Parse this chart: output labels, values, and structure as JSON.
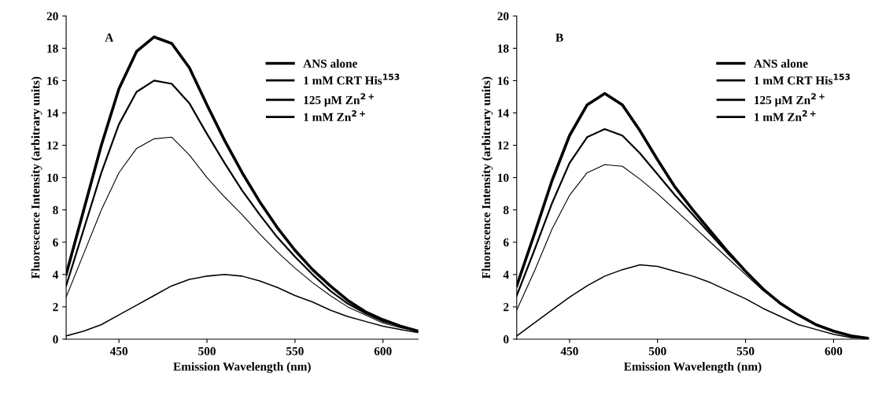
{
  "chart_data": [
    {
      "type": "line",
      "xlabel": "Emission Wavelength (nm)",
      "ylabel": "Fluorescence Intensity (arbitrary units)",
      "annotations": [
        "A"
      ],
      "legend": "top right",
      "grid": false,
      "x": [
        420,
        430,
        440,
        450,
        460,
        470,
        480,
        490,
        500,
        510,
        520,
        530,
        540,
        550,
        560,
        570,
        580,
        590,
        600,
        610,
        620
      ],
      "xlim": [
        420,
        620
      ],
      "xticks": [
        450,
        500,
        550,
        600
      ],
      "ylim": [
        0,
        20
      ],
      "yticks": [
        0,
        2,
        4,
        6,
        8,
        10,
        12,
        14,
        16,
        18,
        20
      ],
      "series": [
        {
          "name": "ANS alone",
          "color": "#000000",
          "values": [
            4.0,
            8.0,
            12.0,
            15.5,
            17.8,
            18.7,
            18.3,
            16.8,
            14.5,
            12.3,
            10.3,
            8.5,
            6.9,
            5.5,
            4.3,
            3.3,
            2.4,
            1.7,
            1.2,
            0.8,
            0.5
          ]
        },
        {
          "name": "1 mM CRT His$^{153}$",
          "color": "#000000",
          "values": [
            3.3,
            6.8,
            10.3,
            13.3,
            15.3,
            16.0,
            15.8,
            14.6,
            12.7,
            10.9,
            9.2,
            7.7,
            6.3,
            5.1,
            4.0,
            3.0,
            2.2,
            1.6,
            1.1,
            0.8,
            0.5
          ]
        },
        {
          "name": "125 μM Zn$^{2+}$",
          "color": "#000000",
          "values": [
            2.6,
            5.3,
            8.0,
            10.3,
            11.8,
            12.4,
            12.5,
            11.4,
            10.0,
            8.8,
            7.7,
            6.5,
            5.4,
            4.4,
            3.5,
            2.7,
            2.0,
            1.5,
            1.0,
            0.7,
            0.5
          ]
        },
        {
          "name": "1 mM Zn$^{2+}$",
          "color": "#000000",
          "values": [
            0.2,
            0.5,
            0.9,
            1.5,
            2.1,
            2.7,
            3.3,
            3.7,
            3.9,
            4.0,
            3.9,
            3.6,
            3.2,
            2.7,
            2.3,
            1.8,
            1.4,
            1.1,
            0.8,
            0.6,
            0.4
          ]
        }
      ]
    },
    {
      "type": "line",
      "xlabel": "Emission Wavelength (nm)",
      "ylabel": "Fluorescence Intensity (arbitrary units)",
      "annotations": [
        "B"
      ],
      "legend": "top right",
      "grid": false,
      "x": [
        420,
        430,
        440,
        450,
        460,
        470,
        480,
        490,
        500,
        510,
        520,
        530,
        540,
        550,
        560,
        570,
        580,
        590,
        600,
        610,
        620
      ],
      "xlim": [
        420,
        620
      ],
      "xticks": [
        450,
        500,
        550,
        600
      ],
      "ylim": [
        0,
        20
      ],
      "yticks": [
        0,
        2,
        4,
        6,
        8,
        10,
        12,
        14,
        16,
        18,
        20
      ],
      "series": [
        {
          "name": "ANS alone",
          "color": "#000000",
          "values": [
            3.3,
            6.5,
            9.8,
            12.6,
            14.5,
            15.2,
            14.5,
            12.9,
            11.1,
            9.4,
            8.0,
            6.7,
            5.4,
            4.2,
            3.1,
            2.2,
            1.5,
            0.9,
            0.5,
            0.2,
            0.05
          ]
        },
        {
          "name": "1 mM CRT His$^{153}$",
          "color": "#000000",
          "values": [
            2.7,
            5.5,
            8.4,
            10.9,
            12.5,
            13.0,
            12.6,
            11.5,
            10.2,
            8.9,
            7.7,
            6.5,
            5.3,
            4.2,
            3.1,
            2.2,
            1.5,
            0.9,
            0.5,
            0.2,
            0.05
          ]
        },
        {
          "name": "125 μM Zn$^{2+}$",
          "color": "#000000",
          "values": [
            1.8,
            4.2,
            6.8,
            8.9,
            10.3,
            10.8,
            10.7,
            9.9,
            9.0,
            8.0,
            7.0,
            6.0,
            5.0,
            4.0,
            3.0,
            2.2,
            1.5,
            0.9,
            0.5,
            0.2,
            0.05
          ]
        },
        {
          "name": "1 mM Zn$^{2+}$",
          "color": "#000000",
          "values": [
            0.2,
            1.0,
            1.8,
            2.6,
            3.3,
            3.9,
            4.3,
            4.6,
            4.5,
            4.2,
            3.9,
            3.5,
            3.0,
            2.5,
            1.9,
            1.4,
            0.9,
            0.6,
            0.3,
            0.1,
            0.05
          ]
        }
      ]
    }
  ]
}
